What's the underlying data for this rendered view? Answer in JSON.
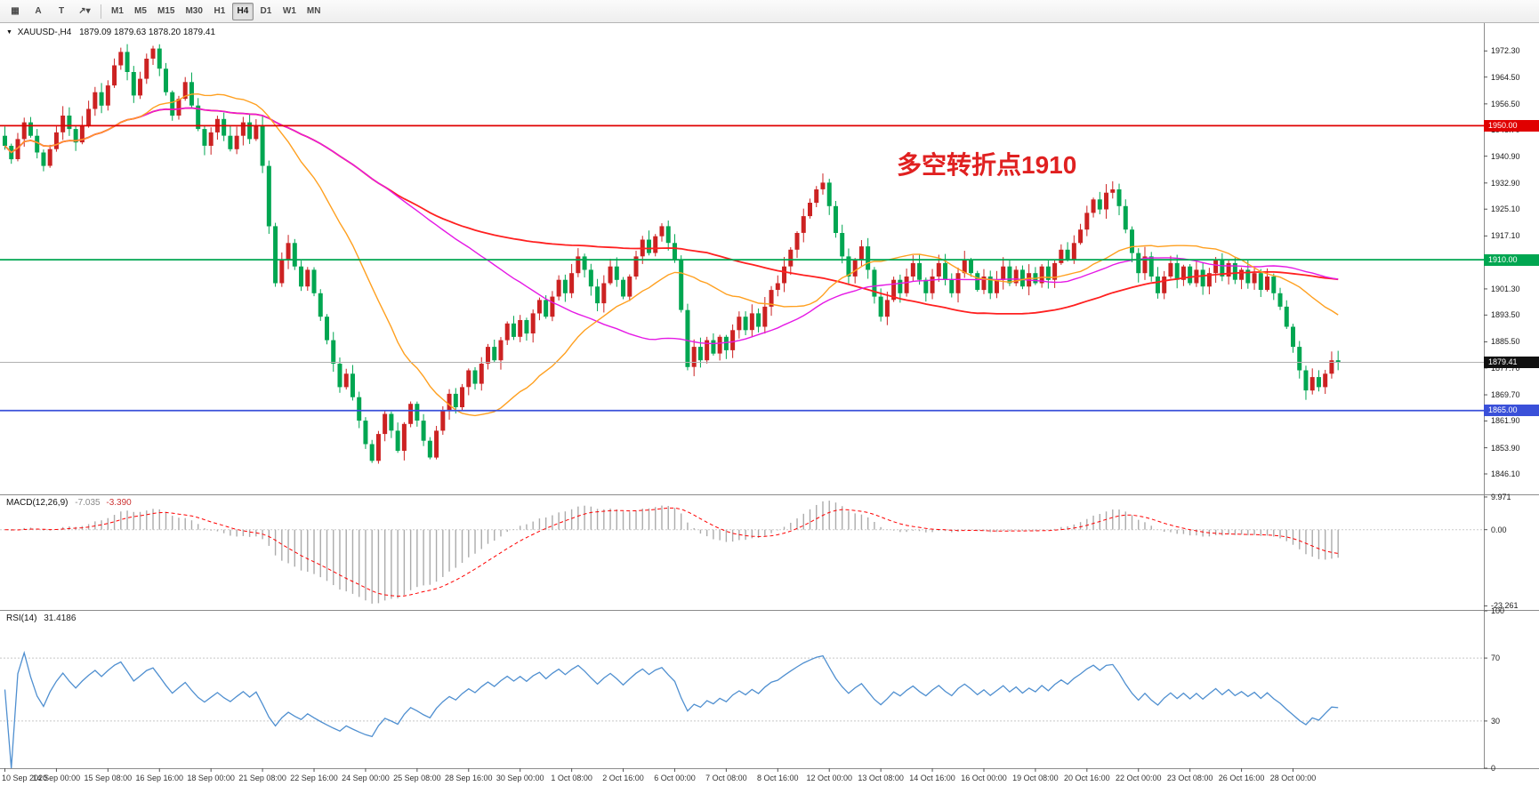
{
  "toolbar": {
    "tools": [
      {
        "name": "charts-grid",
        "glyph": "▦"
      },
      {
        "name": "text-annotation",
        "glyph": "A"
      },
      {
        "name": "text-label",
        "glyph": "T"
      },
      {
        "name": "line-tools-dropdown",
        "glyph": "↗▾"
      }
    ],
    "timeframes": [
      "M1",
      "M5",
      "M15",
      "M30",
      "H1",
      "H4",
      "D1",
      "W1",
      "MN"
    ],
    "active_timeframe": "H4"
  },
  "chart_header": {
    "collapse_icon": "▼",
    "symbol": "XAUUSD-,H4",
    "ohlc": "1879.09 1879.63 1878.20 1879.41"
  },
  "chart": {
    "annotation": "多空转折点1910",
    "annotation_color": "#e02020",
    "price_axis": [
      "1972.30",
      "1964.50",
      "1956.50",
      "1948.70",
      "1940.90",
      "1932.90",
      "1925.10",
      "1917.10",
      "1909.30",
      "1901.30",
      "1893.50",
      "1885.50",
      "1877.70",
      "1869.70",
      "1861.90",
      "1853.90",
      "1846.10"
    ],
    "hlines": [
      {
        "price": 1950.0,
        "label": "1950.00",
        "color": "#e00000"
      },
      {
        "price": 1910.0,
        "label": "1910.00",
        "color": "#00a651"
      },
      {
        "price": 1865.0,
        "label": "1865.00",
        "color": "#3a50d9"
      }
    ],
    "current_price": {
      "price": 1879.41,
      "label": "1879.41",
      "color": "#111111"
    },
    "price_min": 1840.0,
    "price_max": 1980.6,
    "up_color": "#cc2222",
    "down_color": "#00a651",
    "ma_colors": {
      "fast": "#ffa020",
      "medium": "#e519e5",
      "slow": "#ff2020"
    },
    "ma_periods": {
      "fast": 22,
      "medium": 60,
      "slow": 110
    }
  },
  "chart_data": {
    "type": "candlestick",
    "symbol": "XAUUSD-",
    "timeframe": "H4",
    "closes": [
      1944,
      1940,
      1946,
      1951,
      1947,
      1942,
      1938,
      1943,
      1948,
      1953,
      1949,
      1945,
      1950,
      1955,
      1960,
      1956,
      1962,
      1968,
      1972,
      1966,
      1959,
      1964,
      1970,
      1973,
      1967,
      1960,
      1953,
      1958,
      1963,
      1956,
      1949,
      1944,
      1948,
      1952,
      1947,
      1943,
      1947,
      1951,
      1946,
      1950,
      1938,
      1920,
      1903,
      1910,
      1915,
      1908,
      1902,
      1907,
      1900,
      1893,
      1886,
      1879,
      1872,
      1876,
      1869,
      1862,
      1855,
      1850,
      1858,
      1864,
      1859,
      1853,
      1861,
      1867,
      1862,
      1856,
      1851,
      1859,
      1865,
      1870,
      1866,
      1872,
      1877,
      1873,
      1879,
      1884,
      1880,
      1886,
      1891,
      1887,
      1892,
      1888,
      1894,
      1898,
      1893,
      1899,
      1904,
      1900,
      1906,
      1911,
      1907,
      1902,
      1897,
      1903,
      1908,
      1904,
      1899,
      1905,
      1911,
      1916,
      1912,
      1917,
      1920,
      1915,
      1910,
      1895,
      1878,
      1884,
      1880,
      1886,
      1882,
      1887,
      1883,
      1889,
      1893,
      1889,
      1894,
      1890,
      1896,
      1901,
      1903,
      1908,
      1913,
      1918,
      1923,
      1927,
      1931,
      1933,
      1926,
      1918,
      1911,
      1905,
      1910,
      1914,
      1907,
      1899,
      1893,
      1898,
      1904,
      1900,
      1905,
      1909,
      1904,
      1900,
      1905,
      1909,
      1904,
      1900,
      1906,
      1910,
      1906,
      1901,
      1905,
      1900,
      1904,
      1908,
      1903,
      1907,
      1902,
      1906,
      1903,
      1908,
      1904,
      1909,
      1913,
      1910,
      1915,
      1919,
      1924,
      1928,
      1925,
      1930,
      1931,
      1926,
      1919,
      1912,
      1906,
      1911,
      1905,
      1900,
      1905,
      1909,
      1904,
      1908,
      1903,
      1907,
      1902,
      1906,
      1910,
      1905,
      1909,
      1904,
      1907,
      1903,
      1906,
      1901,
      1905,
      1900,
      1896,
      1890,
      1884,
      1877,
      1871,
      1875,
      1872,
      1876,
      1880,
      1879.41
    ],
    "time_labels": [
      "10 Sep 2020",
      "14 Sep 00:00",
      "15 Sep 08:00",
      "16 Sep 16:00",
      "18 Sep 00:00",
      "21 Sep 08:00",
      "22 Sep 16:00",
      "24 Sep 00:00",
      "25 Sep 08:00",
      "28 Sep 16:00",
      "30 Sep 00:00",
      "1 Oct 08:00",
      "2 Oct 16:00",
      "6 Oct 00:00",
      "7 Oct 08:00",
      "8 Oct 16:00",
      "12 Oct 00:00",
      "13 Oct 08:00",
      "14 Oct 16:00",
      "16 Oct 00:00",
      "19 Oct 08:00",
      "20 Oct 16:00",
      "22 Oct 00:00",
      "23 Oct 08:00",
      "26 Oct 16:00",
      "28 Oct 00:00"
    ]
  },
  "macd": {
    "label": "MACD(12,26,9)",
    "main_value": "-7.035",
    "signal_value": "-3.390",
    "axis": [
      "9.971",
      "0.00",
      "-23.261"
    ],
    "range": [
      -24.5,
      10.5
    ],
    "histogram_color": "#ababab",
    "signal_color": "#ff0000"
  },
  "rsi": {
    "label": "RSI(14)",
    "value": "31.4186",
    "period": 14,
    "axis": [
      100,
      70,
      30,
      0
    ],
    "levels": [
      70,
      30
    ],
    "line_color": "#4f8fd0"
  }
}
